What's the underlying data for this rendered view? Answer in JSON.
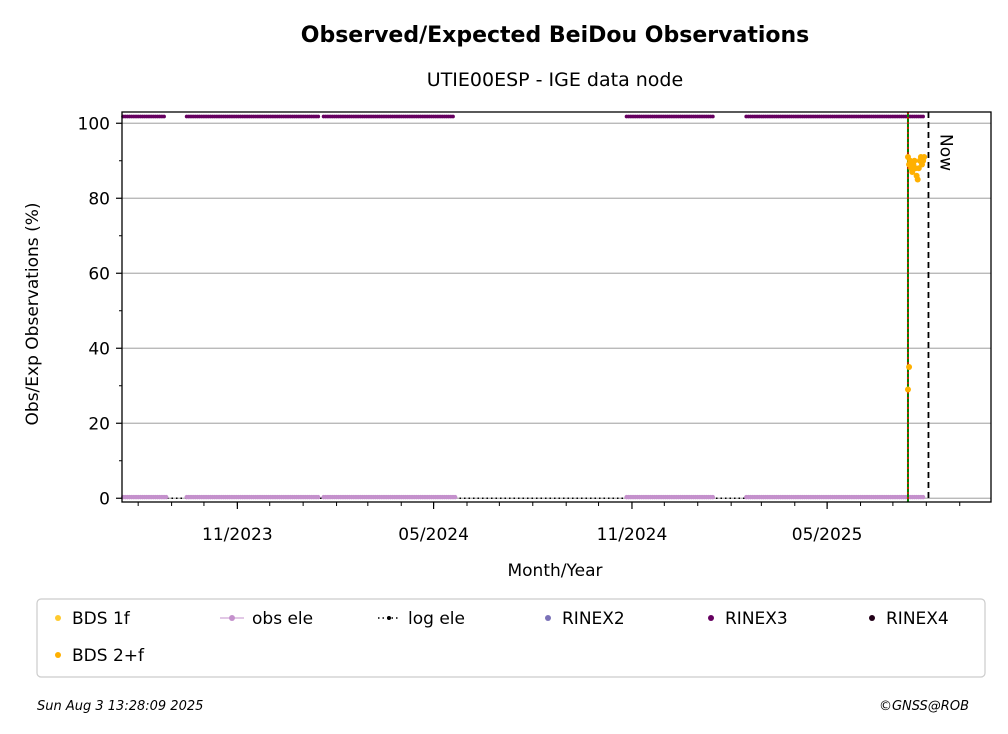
{
  "chart_data": {
    "type": "scatter",
    "title": "Observed/Expected BeiDou Observations",
    "subtitle": "UTIE00ESP - IGE data node",
    "xlabel": "Month/Year",
    "ylabel": "Obs/Exp Observations (%)",
    "ylim": [
      -1,
      103
    ],
    "xlim": [
      "2023-07-17",
      "2025-09-30"
    ],
    "y_ticks": [
      0,
      20,
      40,
      60,
      80,
      100
    ],
    "x_ticks": [
      {
        "date": "2023-11-01",
        "label": "11/2023"
      },
      {
        "date": "2024-05-01",
        "label": "05/2024"
      },
      {
        "date": "2024-11-01",
        "label": "11/2024"
      },
      {
        "date": "2025-05-01",
        "label": "05/2025"
      }
    ],
    "grid": "horizontal",
    "now_label": "Now",
    "now_date": "2025-08-03",
    "station_start_date": "2025-07-15",
    "rinex3_periods": [
      [
        "2023-07-18",
        "2023-08-25"
      ],
      [
        "2023-09-15",
        "2024-01-15"
      ],
      [
        "2024-01-20",
        "2024-05-20"
      ],
      [
        "2024-10-27",
        "2025-01-15"
      ],
      [
        "2025-02-15",
        "2025-07-30"
      ]
    ],
    "obs_ele_periods": [
      [
        "2023-07-18",
        "2023-08-28"
      ],
      [
        "2023-09-15",
        "2024-01-15"
      ],
      [
        "2024-01-20",
        "2024-05-22"
      ],
      [
        "2024-10-27",
        "2025-01-15"
      ],
      [
        "2025-02-15",
        "2025-07-30"
      ]
    ],
    "series": [
      {
        "name": "BDS 2+f",
        "color": "#ffb000",
        "points": [
          [
            "2025-07-16",
            35
          ],
          [
            "2025-07-15",
            29
          ],
          [
            "2025-07-15",
            91
          ],
          [
            "2025-07-16",
            89
          ],
          [
            "2025-07-17",
            90
          ],
          [
            "2025-07-18",
            88
          ],
          [
            "2025-07-19",
            87
          ],
          [
            "2025-07-20",
            89
          ],
          [
            "2025-07-21",
            90
          ],
          [
            "2025-07-22",
            88
          ],
          [
            "2025-07-23",
            86
          ],
          [
            "2025-07-24",
            85
          ],
          [
            "2025-07-25",
            88
          ],
          [
            "2025-07-26",
            90
          ],
          [
            "2025-07-27",
            91
          ],
          [
            "2025-07-28",
            89
          ],
          [
            "2025-07-29",
            90
          ],
          [
            "2025-07-30",
            91
          ]
        ]
      },
      {
        "name": "BDS 1f",
        "color": "#ffca2f",
        "points": []
      }
    ],
    "legend": {
      "placement": "bottom",
      "items": [
        {
          "label": "BDS 1f",
          "color": "#ffca2f",
          "marker": "dot"
        },
        {
          "label": "obs ele",
          "color": "#c490cc",
          "marker": "line-dot"
        },
        {
          "label": "log ele",
          "color": "#000000",
          "marker": "dotted-line"
        },
        {
          "label": "RINEX2",
          "color": "#7b72b8",
          "marker": "dot"
        },
        {
          "label": "RINEX3",
          "color": "#660060",
          "marker": "dot"
        },
        {
          "label": "RINEX4",
          "color": "#220018",
          "marker": "dot"
        },
        {
          "label": "BDS 2+f",
          "color": "#ffb000",
          "marker": "dot"
        }
      ]
    },
    "colors": {
      "rinex3": "#660060",
      "obs_ele": "#c490cc",
      "start_line": "#008000",
      "start_line_dash": "#ff0000",
      "grid": "#b0b0b0"
    }
  },
  "footer": {
    "timestamp": "Sun Aug  3 13:28:09 2025",
    "copyright": "©GNSS@ROB"
  }
}
